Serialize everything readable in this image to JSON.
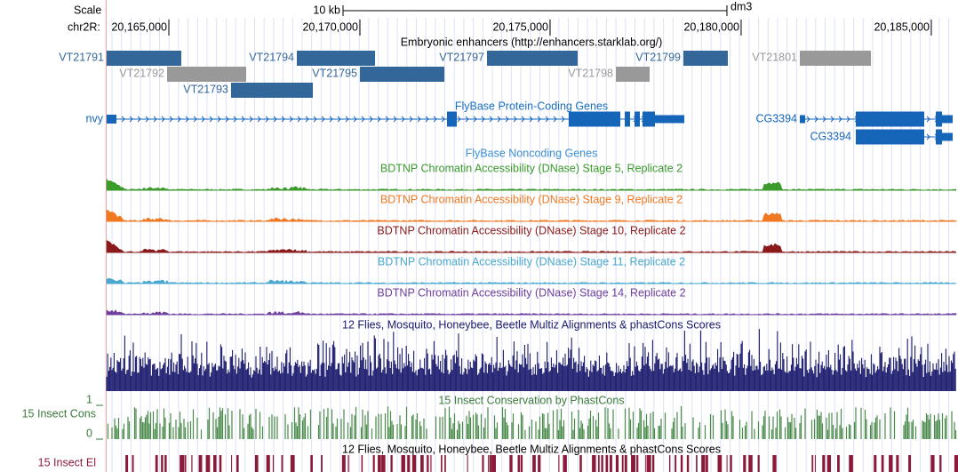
{
  "header": {
    "scale_label": "Scale",
    "scale_size": "10 kb",
    "assembly": "dm3",
    "chrom": "chr2R:",
    "positions": [
      "20,165,000",
      "20,170,000",
      "20,175,000",
      "20,180,000",
      "20,185,000"
    ]
  },
  "enhancers": {
    "title": "Embryonic enhancers (http://enhancers.starklab.org/)",
    "items": [
      "VT21791",
      "VT21792",
      "VT21793",
      "VT21794",
      "VT21795",
      "VT21797",
      "VT21798",
      "VT21799",
      "VT21801"
    ]
  },
  "coding_genes": {
    "title": "FlyBase Protein-Coding Genes",
    "items": [
      "nvy",
      "CG3394",
      "CG3394"
    ]
  },
  "noncoding_genes": {
    "title": "FlyBase Noncoding Genes"
  },
  "dnase_tracks": [
    "BDTNP Chromatin Accessibility (DNase) Stage 5, Replicate 2",
    "BDTNP Chromatin Accessibility (DNase) Stage 9, Replicate 2",
    "BDTNP Chromatin Accessibility (DNase) Stage 10, Replicate 2",
    "BDTNP Chromatin Accessibility (DNase) Stage 11, Replicate 2",
    "BDTNP Chromatin Accessibility (DNase) Stage 14, Replicate 2"
  ],
  "multiz": {
    "title": "12 Flies, Mosquito, Honeybee, Beetle Multiz Alignments & phastCons Scores"
  },
  "phastcons": {
    "title": "15 Insect Conservation by PhastCons",
    "label": "15 Insect Cons",
    "max": 1,
    "min": 0
  },
  "elements": {
    "title": "12 Flies, Mosquito, Honeybee, Beetle Multiz Alignments & phastCons Scores",
    "label": "15 Insect El"
  }
}
